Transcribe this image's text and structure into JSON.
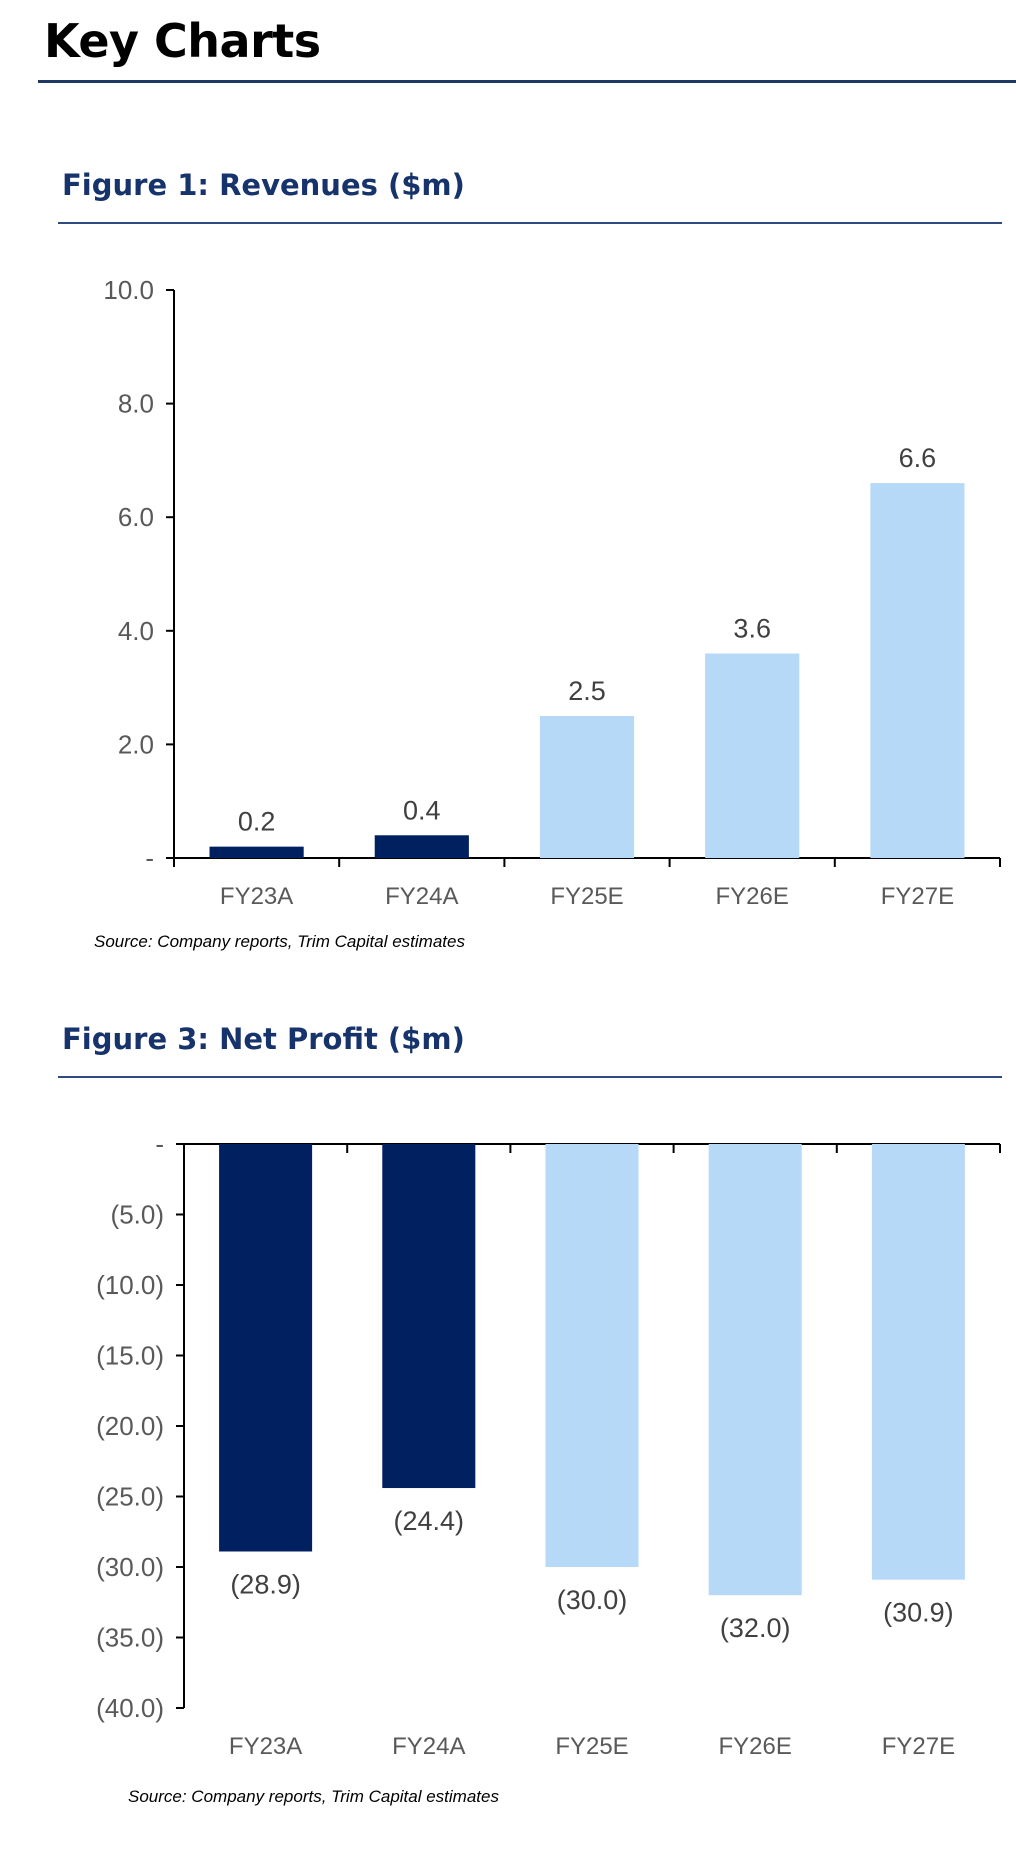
{
  "page": {
    "title": "Key Charts"
  },
  "colors": {
    "actual": "#002060",
    "estimate": "#b7d9f8",
    "axis": "#000000",
    "tick_text": "#595959",
    "label_text": "#404040",
    "title": "#16336b",
    "rule": "#2e4a80"
  },
  "chart_data": [
    {
      "type": "bar",
      "title": "Figure 1: Revenues ($m)",
      "categories": [
        "FY23A",
        "FY24A",
        "FY25E",
        "FY26E",
        "FY27E"
      ],
      "values": [
        0.2,
        0.4,
        2.5,
        3.6,
        6.6
      ],
      "value_labels": [
        "0.2",
        "0.4",
        "2.5",
        "3.6",
        "6.6"
      ],
      "series_kind": [
        "actual",
        "actual",
        "estimate",
        "estimate",
        "estimate"
      ],
      "ylim": [
        0,
        10
      ],
      "yticks": [
        0,
        2,
        4,
        6,
        8,
        10
      ],
      "ytick_labels": [
        "-",
        "2.0",
        "4.0",
        "6.0",
        "8.0",
        "10.0"
      ],
      "xlabel": "",
      "ylabel": "",
      "grid": false,
      "source": "Source:  Company reports, Trim Capital estimates"
    },
    {
      "type": "bar",
      "title": "Figure 3: Net Profit ($m)",
      "categories": [
        "FY23A",
        "FY24A",
        "FY25E",
        "FY26E",
        "FY27E"
      ],
      "values": [
        -28.9,
        -24.4,
        -30.0,
        -32.0,
        -30.9
      ],
      "value_labels": [
        "(28.9)",
        "(24.4)",
        "(30.0)",
        "(32.0)",
        "(30.9)"
      ],
      "series_kind": [
        "actual",
        "actual",
        "estimate",
        "estimate",
        "estimate"
      ],
      "ylim": [
        -40,
        0
      ],
      "yticks": [
        0,
        -5,
        -10,
        -15,
        -20,
        -25,
        -30,
        -35,
        -40
      ],
      "ytick_labels": [
        "-",
        "(5.0)",
        "(10.0)",
        "(15.0)",
        "(20.0)",
        "(25.0)",
        "(30.0)",
        "(35.0)",
        "(40.0)"
      ],
      "xlabel": "",
      "ylabel": "",
      "grid": false,
      "source": "Source:  Company reports, Trim Capital estimates"
    }
  ]
}
